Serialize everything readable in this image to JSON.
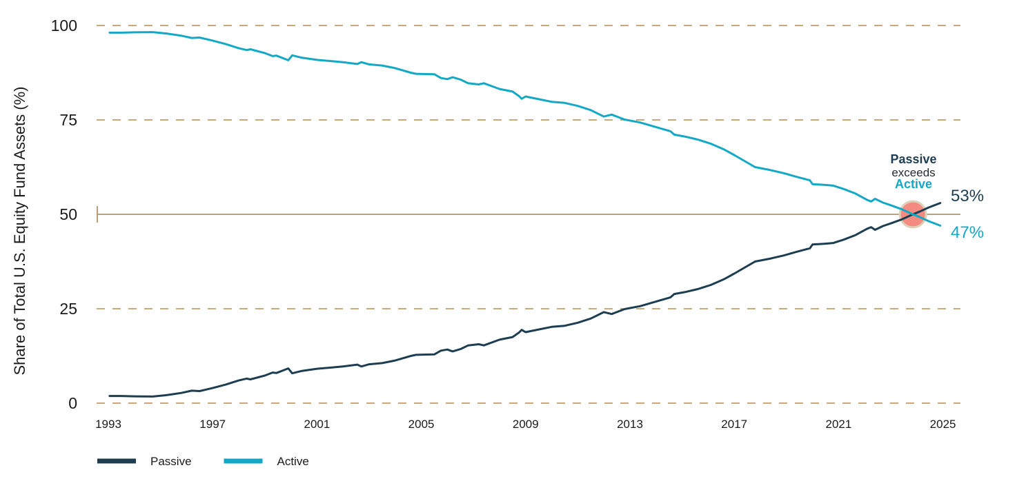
{
  "colors": {
    "passive_line": "#1d3d51",
    "active_line": "#13a8c6",
    "grid_dashed": "#c9a97a",
    "grid_solid_50": "#b39468",
    "text": "#1a1a1a",
    "crossover_marker": "#f5847b",
    "crossover_halo": "#ddd1ba",
    "background": "#ffffff"
  },
  "chart_data": {
    "type": "line",
    "title": "",
    "xlabel": "",
    "ylabel": "Share of Total U.S. Equity Fund Assets (%)",
    "xlim": [
      1992.5,
      2025.5
    ],
    "ylim": [
      0,
      100
    ],
    "xticks": [
      1993,
      1997,
      2001,
      2005,
      2009,
      2013,
      2017,
      2021,
      2025
    ],
    "yticks": [
      0,
      25,
      50,
      75,
      100
    ],
    "grid": "horizontal dashed gridlines at 0/25/75/100; emphasized solid tan line at 50 with left end-cap tick",
    "legend_position": "bottom-left",
    "x": [
      1993.05,
      1993.5,
      1994.0,
      1994.7,
      1995.2,
      1995.8,
      1996.2,
      1996.5,
      1997.0,
      1997.5,
      1998.0,
      1998.3,
      1998.45,
      1999.0,
      1999.3,
      1999.45,
      1999.9,
      2000.05,
      2000.4,
      2001.0,
      2001.5,
      2002.0,
      2002.55,
      2002.7,
      2003.0,
      2003.5,
      2004.0,
      2004.6,
      2004.8,
      2005.5,
      2005.75,
      2006.0,
      2006.2,
      2006.5,
      2006.8,
      2007.2,
      2007.4,
      2008.0,
      2008.5,
      2008.75,
      2008.85,
      2009.0,
      2009.5,
      2010.0,
      2010.5,
      2011.0,
      2011.5,
      2012.0,
      2012.3,
      2012.8,
      2013.4,
      2014.0,
      2014.55,
      2014.7,
      2015.1,
      2015.6,
      2016.1,
      2016.6,
      2017.0,
      2017.8,
      2018.4,
      2018.9,
      2019.4,
      2019.9,
      2020.0,
      2020.45,
      2020.8,
      2021.2,
      2021.65,
      2022.1,
      2022.25,
      2022.4,
      2022.7,
      2023.0,
      2023.4,
      2023.85,
      2024.1,
      2024.45,
      2024.9
    ],
    "series": [
      {
        "name": "Passive",
        "color": "#1d3d51",
        "end_value_pct": 53,
        "values": [
          1.9,
          1.9,
          1.8,
          1.75,
          2.1,
          2.7,
          3.3,
          3.2,
          4.0,
          4.9,
          6.0,
          6.5,
          6.3,
          7.3,
          8.1,
          8.0,
          9.2,
          7.9,
          8.5,
          9.1,
          9.4,
          9.7,
          10.2,
          9.7,
          10.3,
          10.6,
          11.3,
          12.5,
          12.8,
          12.9,
          13.9,
          14.2,
          13.7,
          14.3,
          15.3,
          15.6,
          15.3,
          16.8,
          17.5,
          18.7,
          19.4,
          18.8,
          19.5,
          20.2,
          20.5,
          21.3,
          22.4,
          24.1,
          23.6,
          24.9,
          25.7,
          26.9,
          28.0,
          28.9,
          29.4,
          30.2,
          31.3,
          32.8,
          34.3,
          37.5,
          38.3,
          39.1,
          40.1,
          41.0,
          42.0,
          42.2,
          42.4,
          43.3,
          44.5,
          46.2,
          46.6,
          45.9,
          46.9,
          47.6,
          48.6,
          50.0,
          50.7,
          51.8,
          53.0
        ]
      },
      {
        "name": "Active",
        "color": "#13a8c6",
        "end_value_pct": 47,
        "values": [
          98.1,
          98.1,
          98.2,
          98.25,
          97.9,
          97.3,
          96.7,
          96.8,
          96.0,
          95.1,
          94.0,
          93.5,
          93.7,
          92.7,
          91.9,
          92.0,
          90.8,
          92.1,
          91.5,
          90.9,
          90.6,
          90.3,
          89.8,
          90.3,
          89.7,
          89.4,
          88.7,
          87.5,
          87.2,
          87.1,
          86.1,
          85.8,
          86.3,
          85.7,
          84.7,
          84.4,
          84.7,
          83.2,
          82.5,
          81.3,
          80.6,
          81.2,
          80.5,
          79.8,
          79.5,
          78.7,
          77.6,
          75.9,
          76.4,
          75.1,
          74.3,
          73.1,
          72.0,
          71.1,
          70.6,
          69.8,
          68.7,
          67.2,
          65.7,
          62.5,
          61.7,
          60.9,
          59.9,
          59.0,
          58.0,
          57.8,
          57.6,
          56.7,
          55.5,
          53.8,
          53.4,
          54.1,
          53.1,
          52.4,
          51.4,
          50.0,
          49.3,
          48.2,
          47.0
        ]
      }
    ],
    "annotations": {
      "crossover": {
        "x": 2023.85,
        "y": 50,
        "lines": [
          "Passive",
          "exceeds",
          "Active"
        ],
        "marker_color": "#f5847b",
        "halo_color": "#ddd1ba"
      },
      "end_labels": [
        {
          "text": "53%",
          "series": "Passive"
        },
        {
          "text": "47%",
          "series": "Active"
        }
      ]
    }
  }
}
